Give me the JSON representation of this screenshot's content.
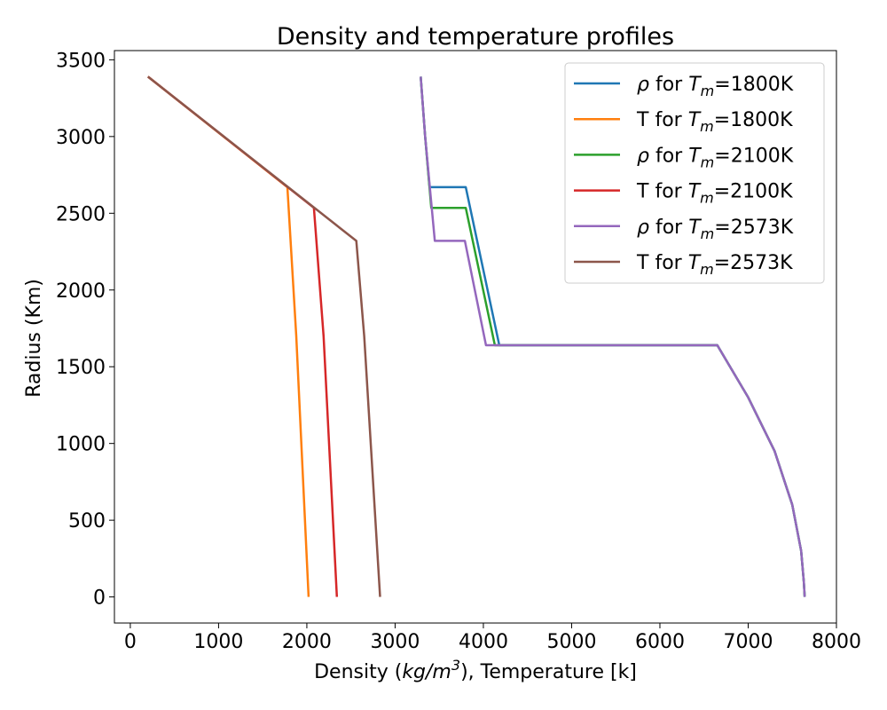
{
  "chart_data": {
    "type": "line",
    "title": "Density and temperature profiles",
    "xlabel_parts": {
      "pre": "Density (",
      "unit": "kg/m",
      "sup": "3",
      "post": "), Temperature [k]"
    },
    "ylabel": "Radius (Km)",
    "xlim": [
      -180,
      8000
    ],
    "ylim": [
      -170,
      3560
    ],
    "xticks": [
      0,
      1000,
      2000,
      3000,
      4000,
      5000,
      6000,
      7000,
      8000
    ],
    "yticks": [
      0,
      500,
      1000,
      1500,
      2000,
      2500,
      3000,
      3500
    ],
    "grid": false,
    "legend_position": "top-right",
    "series": [
      {
        "name": "ρ for T_m=1800K",
        "legend": {
          "sym": "ρ",
          "mid": " for ",
          "var": "T",
          "sub": "m",
          "post": "=1800K"
        },
        "color": "#1f77b4",
        "points": [
          [
            3290,
            3390
          ],
          [
            3340,
            3000
          ],
          [
            3390,
            2670
          ],
          [
            3800,
            2670
          ],
          [
            4180,
            1640
          ],
          [
            6650,
            1640
          ],
          [
            7000,
            1300
          ],
          [
            7300,
            950
          ],
          [
            7500,
            600
          ],
          [
            7600,
            300
          ],
          [
            7630,
            100
          ],
          [
            7640,
            0
          ]
        ]
      },
      {
        "name": "T for T_m=1800K",
        "legend": {
          "sym": "T",
          "mid": " for ",
          "var": "T",
          "sub": "m",
          "post": "=1800K"
        },
        "color": "#ff7f0e",
        "points": [
          [
            200,
            3390
          ],
          [
            1780,
            2670
          ],
          [
            1880,
            1700
          ],
          [
            2020,
            0
          ]
        ]
      },
      {
        "name": "ρ for T_m=2100K",
        "legend": {
          "sym": "ρ",
          "mid": " for ",
          "var": "T",
          "sub": "m",
          "post": "=2100K"
        },
        "color": "#2ca02c",
        "points": [
          [
            3290,
            3390
          ],
          [
            3340,
            3000
          ],
          [
            3410,
            2535
          ],
          [
            3800,
            2535
          ],
          [
            4130,
            1640
          ],
          [
            6650,
            1640
          ],
          [
            7000,
            1300
          ],
          [
            7300,
            950
          ],
          [
            7500,
            600
          ],
          [
            7600,
            300
          ],
          [
            7630,
            100
          ],
          [
            7640,
            0
          ]
        ]
      },
      {
        "name": "T for T_m=2100K",
        "legend": {
          "sym": "T",
          "mid": " for ",
          "var": "T",
          "sub": "m",
          "post": "=2100K"
        },
        "color": "#d62728",
        "points": [
          [
            200,
            3390
          ],
          [
            2080,
            2535
          ],
          [
            2190,
            1700
          ],
          [
            2340,
            0
          ]
        ]
      },
      {
        "name": "ρ for T_m=2573K",
        "legend": {
          "sym": "ρ",
          "mid": " for ",
          "var": "T",
          "sub": "m",
          "post": "=2573K"
        },
        "color": "#9467bd",
        "points": [
          [
            3290,
            3390
          ],
          [
            3340,
            3000
          ],
          [
            3450,
            2320
          ],
          [
            3790,
            2320
          ],
          [
            4030,
            1640
          ],
          [
            6650,
            1640
          ],
          [
            7000,
            1300
          ],
          [
            7300,
            950
          ],
          [
            7500,
            600
          ],
          [
            7600,
            300
          ],
          [
            7630,
            100
          ],
          [
            7640,
            0
          ]
        ]
      },
      {
        "name": "T for T_m=2573K",
        "legend": {
          "sym": "T",
          "mid": " for ",
          "var": "T",
          "sub": "m",
          "post": "=2573K"
        },
        "color": "#8c564b",
        "points": [
          [
            200,
            3390
          ],
          [
            2560,
            2320
          ],
          [
            2650,
            1700
          ],
          [
            2830,
            0
          ]
        ]
      }
    ]
  }
}
